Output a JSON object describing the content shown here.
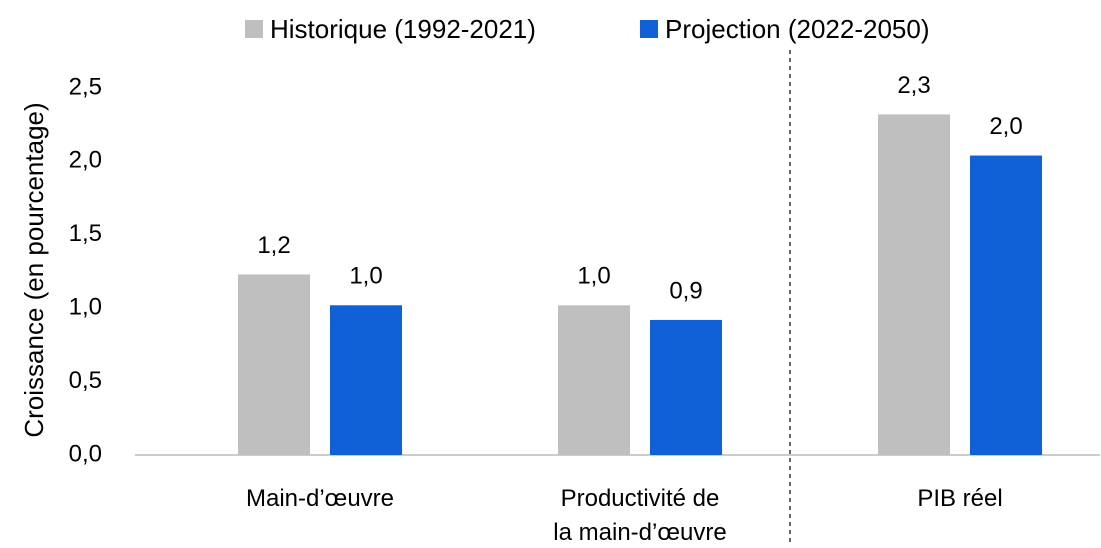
{
  "chart_data": {
    "type": "bar",
    "y_label": "Croissance (en pourcentage)",
    "categories": [
      "Main-d’œuvre",
      "Productivité de\nla main-d’œuvre",
      "PIB réel"
    ],
    "series": [
      {
        "name": "Historique (1992-2021)",
        "color": "#bfbfbf",
        "values": [
          1.23,
          1.02,
          2.32
        ],
        "value_labels": [
          "1,2",
          "1,0",
          "2,3"
        ]
      },
      {
        "name": "Projection (2022-2050)",
        "color": "#1060d8",
        "values": [
          1.02,
          0.92,
          2.04
        ],
        "value_labels": [
          "1,0",
          "0,9",
          "2,0"
        ]
      }
    ],
    "ylim": [
      0,
      2.5
    ],
    "yticks": [
      {
        "value": 0,
        "label": "0,0"
      },
      {
        "value": 0.5,
        "label": "0,5"
      },
      {
        "value": 1,
        "label": "1,0"
      },
      {
        "value": 1.5,
        "label": "1,5"
      },
      {
        "value": 2,
        "label": "2,0"
      },
      {
        "value": 2.5,
        "label": "2,5"
      }
    ],
    "legend": "top",
    "grid": false
  }
}
